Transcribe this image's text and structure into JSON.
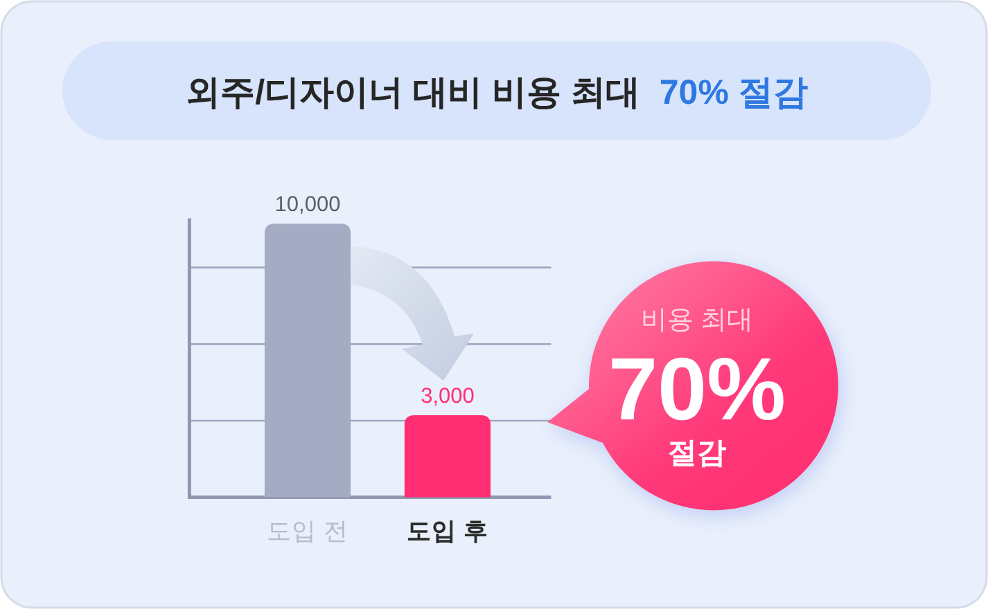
{
  "chart_data": {
    "type": "bar",
    "title": "외주/디자이너 대비 비용 최대",
    "subtitle": "70% 절감",
    "categories": [
      "도입 전",
      "도입 후"
    ],
    "values": [
      10000,
      3000
    ],
    "colors": [
      "#a3acc2",
      "#ff2d72"
    ],
    "value_labels": [
      "10,000",
      "3,000"
    ],
    "ylim": [
      0,
      10200
    ],
    "yticks": [
      {
        "value": 2800,
        "label": null
      },
      {
        "value": 5600,
        "label": null
      },
      {
        "value": 8400,
        "label": null
      }
    ],
    "grid": "y",
    "tick_labels": "x",
    "annotations": [
      "비용 최대",
      "70%",
      "절감"
    ]
  }
}
